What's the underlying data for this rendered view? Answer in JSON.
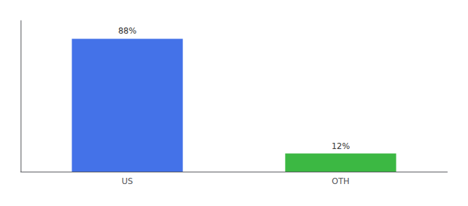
{
  "chart_data": {
    "type": "bar",
    "categories": [
      "US",
      "OTH"
    ],
    "values": [
      88,
      12
    ],
    "value_labels": [
      "88%",
      "12%"
    ],
    "colors": [
      "#4472e8",
      "#3cb843"
    ],
    "data_labels": true,
    "ylim": [
      0,
      100
    ],
    "tick_labels": "x",
    "grid": false
  }
}
